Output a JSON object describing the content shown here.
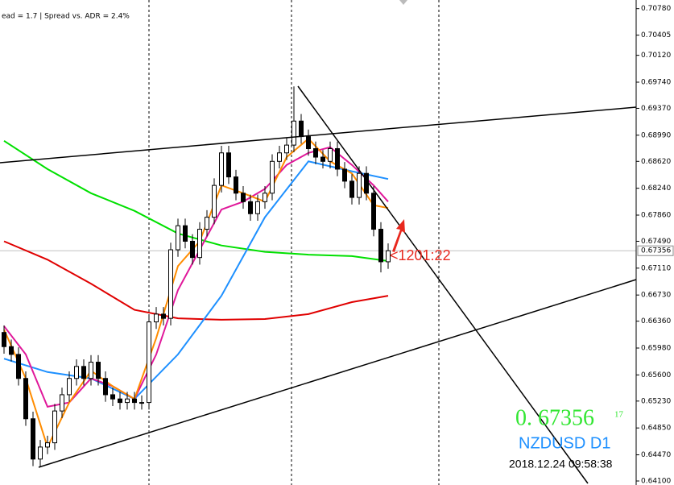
{
  "chart_data": {
    "type": "candlestick",
    "subtitle": "ead = 1.7  |  Spread vs. ADR = 2.4%",
    "timer_label": "<1201:22",
    "price_display": "0. 67356",
    "price_superscript": "17",
    "symbol": "NZDUSD D1",
    "timestamp": "2018.12.24 09:58:38",
    "open": [
      0.662,
      0.66,
      0.6589,
      0.6555,
      0.6498,
      0.6441,
      0.6458,
      0.6464,
      0.6509,
      0.6532,
      0.6555,
      0.6572,
      0.6555,
      0.6578,
      0.6555,
      0.6532,
      0.6526,
      0.6521,
      0.6526,
      0.6521,
      0.6521,
      0.6635,
      0.6646,
      0.664,
      0.6737,
      0.6771,
      0.6749,
      0.6726,
      0.6766,
      0.6783,
      0.6828,
      0.6874,
      0.684,
      0.6817,
      0.6805,
      0.6788,
      0.6805,
      0.6817,
      0.6862,
      0.6874,
      0.6885,
      0.6919,
      0.6897,
      0.688,
      0.6868,
      0.6862,
      0.688,
      0.6851,
      0.6834,
      0.6811,
      0.6845,
      0.6817,
      0.6766,
      0.672
    ],
    "high": [
      0.663,
      0.661,
      0.6599,
      0.6565,
      0.6508,
      0.6468,
      0.6474,
      0.6519,
      0.6542,
      0.6565,
      0.6582,
      0.6582,
      0.6588,
      0.6588,
      0.6565,
      0.6542,
      0.6536,
      0.6536,
      0.6536,
      0.6531,
      0.6645,
      0.6656,
      0.6656,
      0.6747,
      0.6781,
      0.6781,
      0.6759,
      0.6776,
      0.6793,
      0.6838,
      0.6884,
      0.6884,
      0.685,
      0.6827,
      0.6815,
      0.6815,
      0.6827,
      0.6872,
      0.6884,
      0.6895,
      0.6968,
      0.6929,
      0.6907,
      0.689,
      0.6878,
      0.689,
      0.689,
      0.6861,
      0.6844,
      0.6855,
      0.6855,
      0.6827,
      0.6776,
      0.6746
    ],
    "low": [
      0.659,
      0.6579,
      0.6545,
      0.6488,
      0.6431,
      0.6431,
      0.6448,
      0.6454,
      0.6499,
      0.6522,
      0.6545,
      0.6545,
      0.6545,
      0.6545,
      0.6522,
      0.6516,
      0.6511,
      0.6511,
      0.6511,
      0.6511,
      0.6511,
      0.6625,
      0.663,
      0.663,
      0.6727,
      0.6739,
      0.6716,
      0.6716,
      0.6756,
      0.6773,
      0.6818,
      0.683,
      0.6807,
      0.6795,
      0.6778,
      0.6778,
      0.6795,
      0.6807,
      0.6852,
      0.6864,
      0.6875,
      0.6887,
      0.687,
      0.6858,
      0.6852,
      0.6852,
      0.6841,
      0.6824,
      0.6801,
      0.6801,
      0.6807,
      0.6756,
      0.6705,
      0.671
    ],
    "close": [
      0.66,
      0.6589,
      0.6555,
      0.6498,
      0.6441,
      0.6458,
      0.6464,
      0.6509,
      0.6532,
      0.6555,
      0.6572,
      0.6555,
      0.6578,
      0.6555,
      0.6532,
      0.6526,
      0.6521,
      0.6526,
      0.6521,
      0.6521,
      0.6635,
      0.6646,
      0.664,
      0.6737,
      0.6771,
      0.6749,
      0.6726,
      0.6766,
      0.6783,
      0.6828,
      0.6874,
      0.684,
      0.6817,
      0.6805,
      0.6788,
      0.6805,
      0.6817,
      0.6862,
      0.6874,
      0.6885,
      0.6919,
      0.6897,
      0.688,
      0.6868,
      0.6862,
      0.688,
      0.6851,
      0.6834,
      0.6811,
      0.6845,
      0.6817,
      0.6766,
      0.672,
      0.67356
    ],
    "moving_averages": [
      {
        "color": "#00e000",
        "x": [
          0,
          6,
          12,
          18,
          24,
          30,
          36,
          42,
          48,
          53
        ],
        "values": [
          0.6891,
          0.6851,
          0.6817,
          0.6792,
          0.676,
          0.6743,
          0.6734,
          0.673,
          0.6728,
          0.6721
        ]
      },
      {
        "color": "#e00000",
        "x": [
          0,
          6,
          12,
          18,
          24,
          30,
          36,
          42,
          48,
          53
        ],
        "values": [
          0.6749,
          0.6723,
          0.6689,
          0.6652,
          0.664,
          0.6638,
          0.6639,
          0.6646,
          0.6663,
          0.6672
        ]
      },
      {
        "color": "#1e90ff",
        "x": [
          0,
          6,
          12,
          18,
          24,
          30,
          36,
          42,
          48,
          53
        ],
        "values": [
          0.6583,
          0.6564,
          0.6555,
          0.6526,
          0.6589,
          0.6672,
          0.6783,
          0.6862,
          0.6848,
          0.6837
        ]
      },
      {
        "color": "#e0189a",
        "x": [
          0,
          3,
          6,
          9,
          12,
          15,
          18,
          21,
          24,
          27,
          30,
          33,
          36,
          39,
          42,
          45,
          48,
          51,
          53
        ],
        "values": [
          0.6629,
          0.6589,
          0.6515,
          0.6521,
          0.6555,
          0.6544,
          0.6526,
          0.6589,
          0.668,
          0.6737,
          0.6794,
          0.6805,
          0.6823,
          0.6857,
          0.6874,
          0.6882,
          0.6857,
          0.6828,
          0.6805
        ]
      },
      {
        "color": "#ff8c00",
        "x": [
          0,
          3,
          6,
          9,
          12,
          15,
          18,
          21,
          24,
          27,
          30,
          33,
          36,
          39,
          42,
          45,
          48,
          51,
          53
        ],
        "values": [
          0.6624,
          0.6555,
          0.6458,
          0.6521,
          0.6566,
          0.6544,
          0.6526,
          0.6612,
          0.6714,
          0.6749,
          0.6828,
          0.6817,
          0.6805,
          0.6868,
          0.6894,
          0.6862,
          0.6845,
          0.68,
          0.6796
        ]
      }
    ],
    "xlim": [
      -0.556,
      87.222
    ],
    "ylim": [
      0.64066,
      0.70902
    ],
    "yticks": [
      {
        "value": 0.7078,
        "label": "0.70780"
      },
      {
        "value": 0.70405,
        "label": "0.70405"
      },
      {
        "value": 0.7012,
        "label": "0.70120"
      },
      {
        "value": 0.6974,
        "label": "0.69740"
      },
      {
        "value": 0.6937,
        "label": "0.69370"
      },
      {
        "value": 0.6899,
        "label": "0.68990"
      },
      {
        "value": 0.6862,
        "label": "0.68620"
      },
      {
        "value": 0.6824,
        "label": "0.68240"
      },
      {
        "value": 0.6786,
        "label": "0.67860"
      },
      {
        "value": 0.6749,
        "label": "0.67490"
      },
      {
        "value": 0.6711,
        "label": "0.67110"
      },
      {
        "value": 0.6673,
        "label": "0.66730"
      },
      {
        "value": 0.6636,
        "label": "0.66360"
      },
      {
        "value": 0.6598,
        "label": "0.65980"
      },
      {
        "value": 0.656,
        "label": "0.65600"
      },
      {
        "value": 0.6523,
        "label": "0.65230"
      },
      {
        "value": 0.6485,
        "label": "0.64850"
      },
      {
        "value": 0.6447,
        "label": "0.64470"
      },
      {
        "value": 0.641,
        "label": "0.64100"
      }
    ]
  }
}
